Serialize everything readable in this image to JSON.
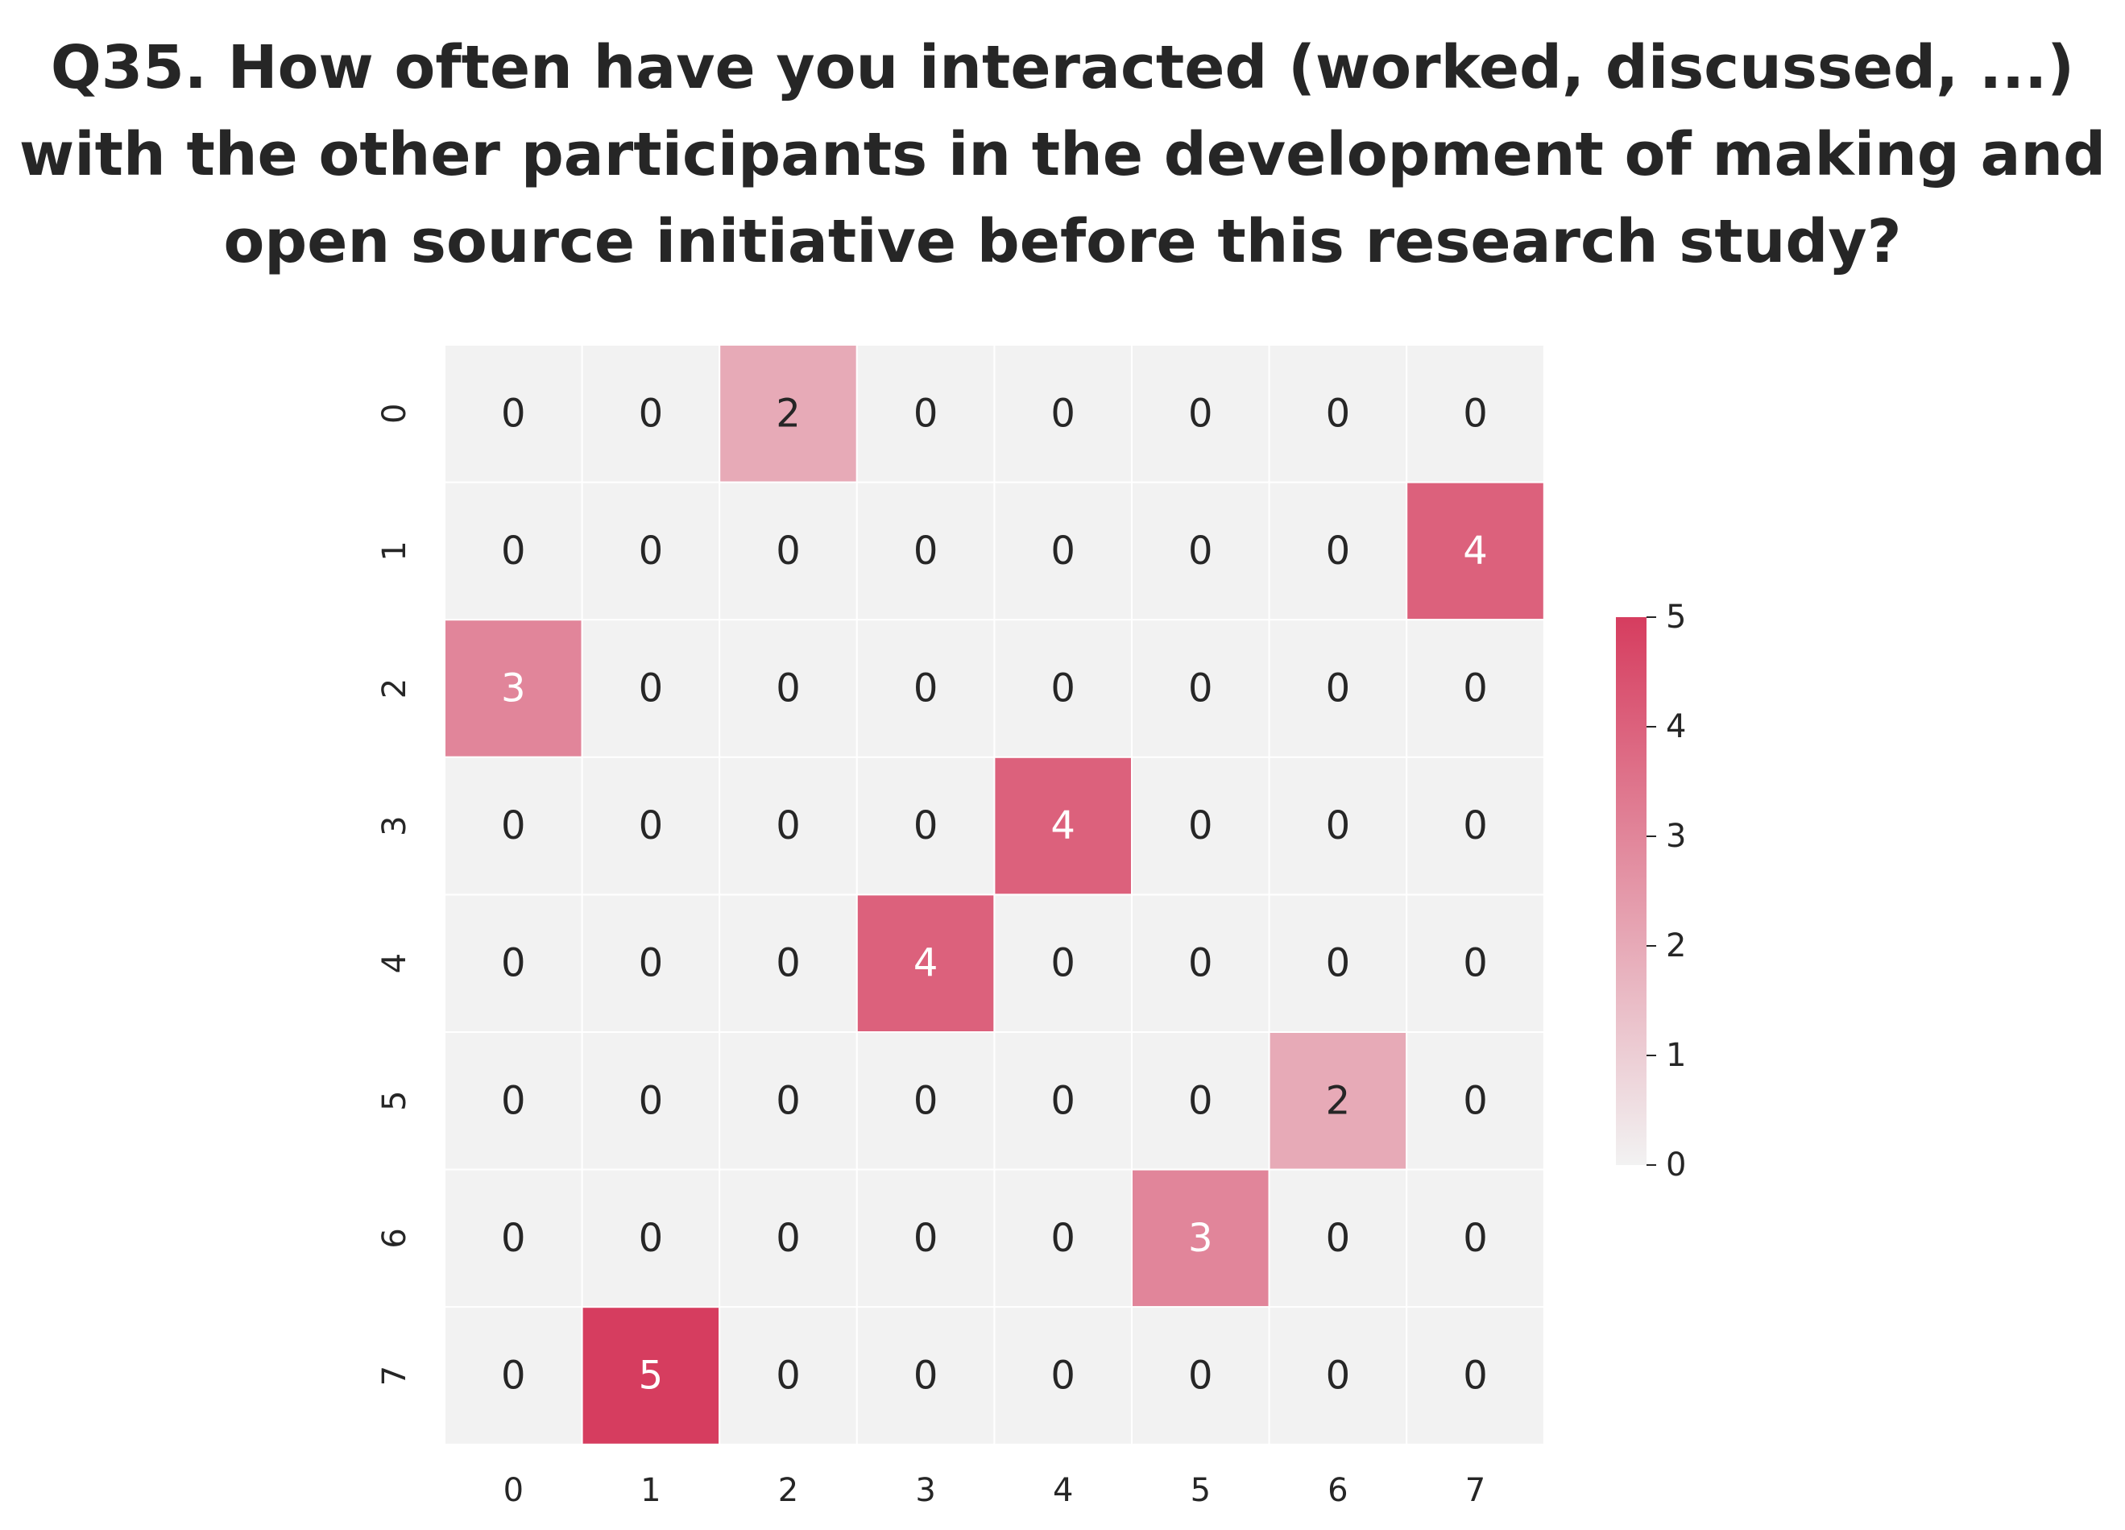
{
  "title_lines": [
    "Q35. How often have you interacted (worked, discussed, ...)",
    "with the other participants in the development of making and",
    "open source initiative before this research study?"
  ],
  "chart_data": {
    "type": "heatmap",
    "title": "Q35. How often have you interacted (worked, discussed, ...) with the other participants in the development of making and open source initiative before this research study?",
    "xlabel": "",
    "ylabel": "",
    "x_categories": [
      "0",
      "1",
      "2",
      "3",
      "4",
      "5",
      "6",
      "7"
    ],
    "y_categories": [
      "0",
      "1",
      "2",
      "3",
      "4",
      "5",
      "6",
      "7"
    ],
    "matrix": [
      [
        0,
        0,
        2,
        0,
        0,
        0,
        0,
        0
      ],
      [
        0,
        0,
        0,
        0,
        0,
        0,
        0,
        4
      ],
      [
        3,
        0,
        0,
        0,
        0,
        0,
        0,
        0
      ],
      [
        0,
        0,
        0,
        0,
        4,
        0,
        0,
        0
      ],
      [
        0,
        0,
        0,
        4,
        0,
        0,
        0,
        0
      ],
      [
        0,
        0,
        0,
        0,
        0,
        0,
        2,
        0
      ],
      [
        0,
        0,
        0,
        0,
        0,
        3,
        0,
        0
      ],
      [
        0,
        5,
        0,
        0,
        0,
        0,
        0,
        0
      ]
    ],
    "annotated": true,
    "colorbar": {
      "min": 0,
      "max": 5,
      "ticks": [
        "0",
        "1",
        "2",
        "3",
        "4",
        "5"
      ]
    },
    "colors": {
      "low": "#f2f2f2",
      "high": "#d63d5f",
      "grid": "#ffffff",
      "text_dark": "#262626",
      "text_light": "#ffffff"
    },
    "grid": true
  }
}
